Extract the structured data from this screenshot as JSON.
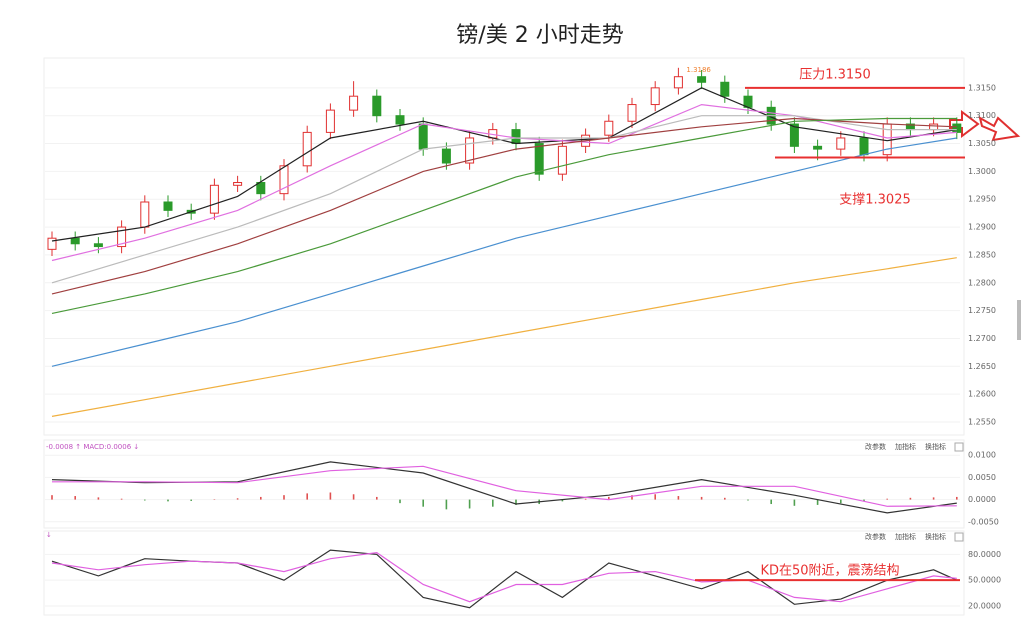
{
  "chart_data": [
    {
      "type": "candlestick",
      "title": "镑/美 2 小时走势",
      "up_color": "#e03030",
      "down_color": "#2a9a2a",
      "grid": true,
      "open": [
        1.286,
        1.288,
        1.287,
        1.2865,
        1.29,
        1.2945,
        1.293,
        1.2925,
        1.2975,
        1.298,
        1.296,
        1.301,
        1.307,
        1.311,
        1.3135,
        1.31,
        1.3085,
        1.304,
        1.3015,
        1.306,
        1.3075,
        1.305,
        1.2995,
        1.3045,
        1.3065,
        1.309,
        1.312,
        1.315,
        1.317,
        1.316,
        1.3135,
        1.3115,
        1.3085,
        1.3045,
        1.304,
        1.306,
        1.303,
        1.3085,
        1.3075,
        1.3085
      ],
      "high": [
        1.2892,
        1.2892,
        1.2882,
        1.2912,
        1.2957,
        1.2957,
        1.2942,
        1.2987,
        1.2992,
        1.2992,
        1.3022,
        1.3082,
        1.3122,
        1.3162,
        1.3147,
        1.3112,
        1.3097,
        1.3052,
        1.3072,
        1.3087,
        1.3087,
        1.3062,
        1.3057,
        1.3077,
        1.3102,
        1.3132,
        1.3162,
        1.3186,
        1.3182,
        1.3172,
        1.3147,
        1.3127,
        1.3097,
        1.3057,
        1.3072,
        1.3072,
        1.3097,
        1.3097,
        1.3097,
        1.3097
      ],
      "low": [
        1.2848,
        1.2858,
        1.2853,
        1.2853,
        1.2888,
        1.2918,
        1.2913,
        1.2913,
        1.2963,
        1.2948,
        1.2948,
        1.2998,
        1.3058,
        1.3098,
        1.3088,
        1.3073,
        1.3028,
        1.3003,
        1.3003,
        1.3048,
        1.3038,
        1.2983,
        1.2983,
        1.3033,
        1.3053,
        1.3078,
        1.3108,
        1.3138,
        1.3148,
        1.3123,
        1.3103,
        1.3073,
        1.3033,
        1.302,
        1.3028,
        1.3018,
        1.3018,
        1.3063,
        1.3063,
        1.3058
      ],
      "close": [
        1.288,
        1.287,
        1.2865,
        1.29,
        1.2945,
        1.293,
        1.2925,
        1.2975,
        1.298,
        1.296,
        1.301,
        1.307,
        1.311,
        1.3135,
        1.31,
        1.3085,
        1.304,
        1.3015,
        1.306,
        1.3075,
        1.305,
        1.2995,
        1.3045,
        1.3065,
        1.309,
        1.312,
        1.315,
        1.317,
        1.316,
        1.3135,
        1.3115,
        1.3085,
        1.3045,
        1.304,
        1.306,
        1.303,
        1.3085,
        1.3075,
        1.3085,
        1.307
      ],
      "series": [
        {
          "color": "#222222",
          "x": [
            0,
            4,
            8,
            12,
            16,
            20,
            24,
            28,
            32,
            36,
            39
          ],
          "values": [
            1.2875,
            1.29,
            1.2955,
            1.306,
            1.309,
            1.305,
            1.306,
            1.315,
            1.308,
            1.3055,
            1.3075
          ]
        },
        {
          "color": "#e070e0",
          "x": [
            0,
            4,
            8,
            12,
            16,
            20,
            24,
            28,
            32,
            36,
            39
          ],
          "values": [
            1.284,
            1.288,
            1.293,
            1.301,
            1.3085,
            1.306,
            1.305,
            1.312,
            1.31,
            1.306,
            1.307
          ]
        },
        {
          "color": "#bbbbbb",
          "x": [
            0,
            4,
            8,
            12,
            16,
            20,
            24,
            28,
            32,
            36,
            39
          ],
          "values": [
            1.28,
            1.285,
            1.29,
            1.296,
            1.304,
            1.306,
            1.306,
            1.31,
            1.31,
            1.3075,
            1.3075
          ]
        },
        {
          "color": "#a04040",
          "x": [
            0,
            4,
            8,
            12,
            16,
            20,
            24,
            28,
            32,
            36,
            39
          ],
          "values": [
            1.278,
            1.282,
            1.287,
            1.293,
            1.3,
            1.304,
            1.306,
            1.308,
            1.3095,
            1.3085,
            1.308
          ]
        },
        {
          "color": "#4a9a3a",
          "x": [
            0,
            4,
            8,
            12,
            16,
            20,
            24,
            28,
            32,
            36,
            39
          ],
          "values": [
            1.2745,
            1.278,
            1.282,
            1.287,
            1.293,
            1.299,
            1.303,
            1.306,
            1.309,
            1.3095,
            1.3095
          ]
        },
        {
          "color": "#4a90d0",
          "x": [
            0,
            4,
            8,
            12,
            16,
            20,
            24,
            28,
            32,
            36,
            39
          ],
          "values": [
            1.265,
            1.269,
            1.273,
            1.278,
            1.283,
            1.288,
            1.292,
            1.296,
            1.3,
            1.304,
            1.306
          ]
        },
        {
          "color": "#f0b040",
          "x": [
            0,
            4,
            8,
            12,
            16,
            20,
            24,
            28,
            32,
            36,
            39
          ],
          "values": [
            1.256,
            1.259,
            1.262,
            1.265,
            1.268,
            1.271,
            1.274,
            1.277,
            1.28,
            1.2825,
            1.2845
          ]
        }
      ],
      "peak_label": "1.3186",
      "annotations": [
        {
          "text": "压力1.3150",
          "value": 1.315
        },
        {
          "text": "支撑1.3025",
          "value": 1.3025
        }
      ],
      "ylim": [
        1.2532,
        1.32
      ],
      "yticks": [
        {
          "value": 1.315,
          "label": "1.3150"
        },
        {
          "value": 1.31,
          "label": "1.3100"
        },
        {
          "value": 1.305,
          "label": "1.3050"
        },
        {
          "value": 1.3,
          "label": "1.3000"
        },
        {
          "value": 1.295,
          "label": "1.2950"
        },
        {
          "value": 1.29,
          "label": "1.2900"
        },
        {
          "value": 1.285,
          "label": "1.2850"
        },
        {
          "value": 1.28,
          "label": "1.2800"
        },
        {
          "value": 1.275,
          "label": "1.2750"
        },
        {
          "value": 1.27,
          "label": "1.2700"
        },
        {
          "value": 1.265,
          "label": "1.2650"
        },
        {
          "value": 1.26,
          "label": "1.2600"
        },
        {
          "value": 1.255,
          "label": "1.2550"
        }
      ]
    },
    {
      "type": "macd",
      "header": "-0.0008 ↑ MACD:0.0006 ↓",
      "toolbar": [
        "改参数",
        "加指标",
        "换指标"
      ],
      "up_color": "#e05050",
      "down_color": "#50a050",
      "histogram": [
        0.001,
        0.0008,
        0.0005,
        0.0002,
        -0.0002,
        -0.0004,
        -0.0003,
        0.0001,
        0.0003,
        0.0006,
        0.001,
        0.0014,
        0.0016,
        0.0012,
        0.0006,
        -0.0008,
        -0.0016,
        -0.0022,
        -0.002,
        -0.0016,
        -0.0012,
        -0.001,
        -0.0004,
        0.0002,
        0.0006,
        0.001,
        0.0012,
        0.0008,
        0.0006,
        0.0004,
        -0.0002,
        -0.001,
        -0.0014,
        -0.0012,
        -0.0008,
        -0.0004,
        0.0002,
        0.0004,
        0.0005,
        0.0006
      ],
      "series": [
        {
          "color": "#333333",
          "x": [
            0,
            4,
            8,
            12,
            16,
            20,
            24,
            28,
            32,
            36,
            39
          ],
          "values": [
            0.0045,
            0.0038,
            0.004,
            0.0085,
            0.006,
            -0.001,
            0.001,
            0.0045,
            0.001,
            -0.003,
            -0.0008
          ]
        },
        {
          "color": "#e060e0",
          "x": [
            0,
            4,
            8,
            12,
            16,
            20,
            24,
            28,
            32,
            36,
            39
          ],
          "values": [
            0.004,
            0.004,
            0.0038,
            0.0065,
            0.0075,
            0.002,
            0.0,
            0.003,
            0.003,
            -0.0015,
            -0.0014
          ]
        }
      ],
      "ylim": [
        -0.0064,
        0.0123
      ],
      "yticks": [
        {
          "value": 0.01,
          "label": "0.0100"
        },
        {
          "value": 0.005,
          "label": "0.0050"
        },
        {
          "value": 0,
          "label": "0.0000"
        },
        {
          "value": -0.005,
          "label": "-0.0050"
        }
      ]
    },
    {
      "type": "line",
      "header": "↓",
      "toolbar": [
        "改参数",
        "加指标",
        "换指标"
      ],
      "series": [
        {
          "color": "#333333",
          "x": [
            0,
            2,
            4,
            6,
            8,
            10,
            12,
            14,
            16,
            18,
            20,
            22,
            24,
            26,
            28,
            30,
            32,
            34,
            36,
            38,
            39
          ],
          "values": [
            72,
            55,
            75,
            72,
            70,
            50,
            85,
            80,
            30,
            18,
            60,
            30,
            70,
            55,
            40,
            60,
            22,
            28,
            50,
            62,
            50
          ]
        },
        {
          "color": "#e060e0",
          "x": [
            0,
            2,
            4,
            6,
            8,
            10,
            12,
            14,
            16,
            18,
            20,
            22,
            24,
            26,
            28,
            30,
            32,
            34,
            36,
            38,
            39
          ],
          "values": [
            70,
            62,
            68,
            72,
            70,
            60,
            75,
            82,
            45,
            25,
            45,
            45,
            58,
            60,
            48,
            50,
            30,
            25,
            40,
            55,
            52
          ]
        }
      ],
      "annotations": [
        {
          "text": "KD在50附近，震荡结构",
          "value": 50
        }
      ],
      "ylim": [
        13,
        102.5
      ],
      "yticks": [
        {
          "value": 80,
          "label": "80.0000"
        },
        {
          "value": 50,
          "label": "50.0000"
        },
        {
          "value": 20,
          "label": "20.0000"
        }
      ]
    }
  ]
}
